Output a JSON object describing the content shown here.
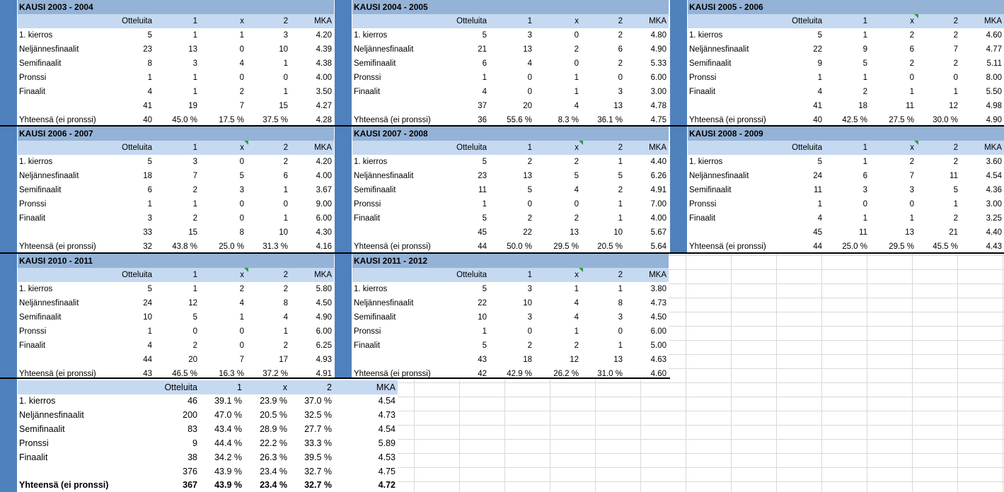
{
  "column_headers": [
    "Otteluita",
    "1",
    "x",
    "2",
    "MKA"
  ],
  "row_labels": [
    "1. kierros",
    "Neljännesfinaalit",
    "Semifinaalit",
    "Pronssi",
    "Finaalit",
    "",
    "Yhteensä (ei pronssi)"
  ],
  "seasons": [
    {
      "title": "KAUSI 2003 - 2004",
      "rows": [
        [
          "5",
          "1",
          "1",
          "3",
          "4.20"
        ],
        [
          "23",
          "13",
          "0",
          "10",
          "4.39"
        ],
        [
          "8",
          "3",
          "4",
          "1",
          "4.38"
        ],
        [
          "1",
          "1",
          "0",
          "0",
          "4.00"
        ],
        [
          "4",
          "1",
          "2",
          "1",
          "3.50"
        ],
        [
          "41",
          "19",
          "7",
          "15",
          "4.27"
        ],
        [
          "40",
          "45.0 %",
          "17.5 %",
          "37.5 %",
          "4.28"
        ]
      ]
    },
    {
      "title": "KAUSI 2004 - 2005",
      "rows": [
        [
          "5",
          "3",
          "0",
          "2",
          "4.80"
        ],
        [
          "21",
          "13",
          "2",
          "6",
          "4.90"
        ],
        [
          "6",
          "4",
          "0",
          "2",
          "5.33"
        ],
        [
          "1",
          "0",
          "1",
          "0",
          "6.00"
        ],
        [
          "4",
          "0",
          "1",
          "3",
          "3.00"
        ],
        [
          "37",
          "20",
          "4",
          "13",
          "4.78"
        ],
        [
          "36",
          "55.6 %",
          "8.3 %",
          "36.1 %",
          "4.75"
        ]
      ]
    },
    {
      "title": "KAUSI 2005 - 2006",
      "rows": [
        [
          "5",
          "1",
          "2",
          "2",
          "4.60"
        ],
        [
          "22",
          "9",
          "6",
          "7",
          "4.77"
        ],
        [
          "9",
          "5",
          "2",
          "2",
          "5.11"
        ],
        [
          "1",
          "1",
          "0",
          "0",
          "8.00"
        ],
        [
          "4",
          "2",
          "1",
          "1",
          "5.50"
        ],
        [
          "41",
          "18",
          "11",
          "12",
          "4.98"
        ],
        [
          "40",
          "42.5 %",
          "27.5 %",
          "30.0 %",
          "4.90"
        ]
      ]
    },
    {
      "title": "KAUSI 2006 - 2007",
      "rows": [
        [
          "5",
          "3",
          "0",
          "2",
          "4.20"
        ],
        [
          "18",
          "7",
          "5",
          "6",
          "4.00"
        ],
        [
          "6",
          "2",
          "3",
          "1",
          "3.67"
        ],
        [
          "1",
          "1",
          "0",
          "0",
          "9.00"
        ],
        [
          "3",
          "2",
          "0",
          "1",
          "6.00"
        ],
        [
          "33",
          "15",
          "8",
          "10",
          "4.30"
        ],
        [
          "32",
          "43.8 %",
          "25.0 %",
          "31.3 %",
          "4.16"
        ]
      ]
    },
    {
      "title": "KAUSI 2007 - 2008",
      "rows": [
        [
          "5",
          "2",
          "2",
          "1",
          "4.40"
        ],
        [
          "23",
          "13",
          "5",
          "5",
          "6.26"
        ],
        [
          "11",
          "5",
          "4",
          "2",
          "4.91"
        ],
        [
          "1",
          "0",
          "0",
          "1",
          "7.00"
        ],
        [
          "5",
          "2",
          "2",
          "1",
          "4.00"
        ],
        [
          "45",
          "22",
          "13",
          "10",
          "5.67"
        ],
        [
          "44",
          "50.0 %",
          "29.5 %",
          "20.5 %",
          "5.64"
        ]
      ]
    },
    {
      "title": "KAUSI 2008 - 2009",
      "rows": [
        [
          "5",
          "1",
          "2",
          "2",
          "3.60"
        ],
        [
          "24",
          "6",
          "7",
          "11",
          "4.54"
        ],
        [
          "11",
          "3",
          "3",
          "5",
          "4.36"
        ],
        [
          "1",
          "0",
          "0",
          "1",
          "3.00"
        ],
        [
          "4",
          "1",
          "1",
          "2",
          "3.25"
        ],
        [
          "45",
          "11",
          "13",
          "21",
          "4.40"
        ],
        [
          "44",
          "25.0 %",
          "29.5 %",
          "45.5 %",
          "4.43"
        ]
      ]
    },
    {
      "title": "KAUSI 2010 - 2011",
      "rows": [
        [
          "5",
          "1",
          "2",
          "2",
          "5.80"
        ],
        [
          "24",
          "12",
          "4",
          "8",
          "4.50"
        ],
        [
          "10",
          "5",
          "1",
          "4",
          "4.90"
        ],
        [
          "1",
          "0",
          "0",
          "1",
          "6.00"
        ],
        [
          "4",
          "2",
          "0",
          "2",
          "6.25"
        ],
        [
          "44",
          "20",
          "7",
          "17",
          "4.93"
        ],
        [
          "43",
          "46.5 %",
          "16.3 %",
          "37.2 %",
          "4.91"
        ]
      ]
    },
    {
      "title": "KAUSI 2011 - 2012",
      "rows": [
        [
          "5",
          "3",
          "1",
          "1",
          "3.80"
        ],
        [
          "22",
          "10",
          "4",
          "8",
          "4.73"
        ],
        [
          "10",
          "3",
          "4",
          "3",
          "4.50"
        ],
        [
          "1",
          "0",
          "1",
          "0",
          "6.00"
        ],
        [
          "5",
          "2",
          "2",
          "1",
          "5.00"
        ],
        [
          "43",
          "18",
          "12",
          "13",
          "4.63"
        ],
        [
          "42",
          "42.9 %",
          "26.2 %",
          "31.0 %",
          "4.60"
        ]
      ]
    }
  ],
  "summary": {
    "rows": [
      {
        "label": "1. kierros",
        "values": [
          "46",
          "39.1 %",
          "23.9 %",
          "37.0 %",
          "4.54"
        ]
      },
      {
        "label": "Neljännesfinaalit",
        "values": [
          "200",
          "47.0 %",
          "20.5 %",
          "32.5 %",
          "4.73"
        ]
      },
      {
        "label": "Semifinaalit",
        "values": [
          "83",
          "43.4 %",
          "28.9 %",
          "27.7 %",
          "4.54"
        ]
      },
      {
        "label": "Pronssi",
        "values": [
          "9",
          "44.4 %",
          "22.2 %",
          "33.3 %",
          "5.89"
        ]
      },
      {
        "label": "Finaalit",
        "values": [
          "38",
          "34.2 %",
          "26.3 %",
          "39.5 %",
          "4.53"
        ]
      },
      {
        "label": "",
        "values": [
          "376",
          "43.9 %",
          "23.4 %",
          "32.7 %",
          "4.75"
        ]
      },
      {
        "label": "Yhteensä (ei pronssi)",
        "values": [
          "367",
          "43.9 %",
          "23.4 %",
          "32.7 %",
          "4.72"
        ]
      }
    ]
  },
  "colors": {
    "title_bg": "#95b3d7",
    "header_bg": "#c5d9f1",
    "side_bar": "#4f81bd",
    "grid": "#d9d9d9",
    "comment_marker": "#2e9d3b"
  }
}
